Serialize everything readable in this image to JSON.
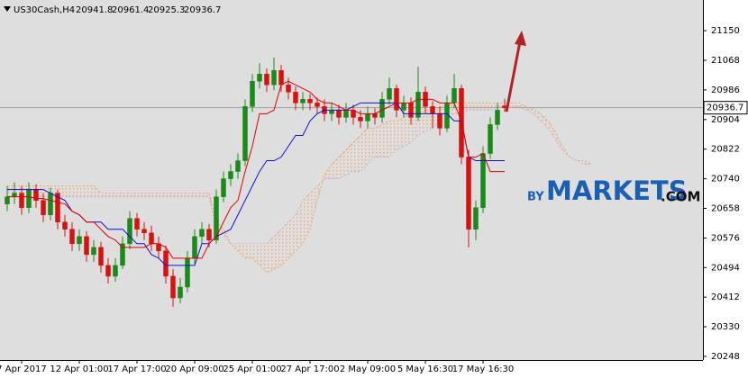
{
  "chart_data": {
    "type": "candlestick",
    "title": "US30Cash,H4",
    "header_ohlc": [
      20941.8,
      20961.4,
      20925.3,
      20936.7
    ],
    "last_price": 20936.7,
    "ylim": [
      20238,
      21235
    ],
    "yticks": [
      21150,
      21068,
      20986,
      20904,
      20822,
      20740,
      20658,
      20576,
      20494,
      20412,
      20330,
      20248
    ],
    "categories": [
      null,
      null,
      "7 Apr 2017",
      null,
      null,
      null,
      null,
      null,
      null,
      null,
      "12 Apr 01:00",
      null,
      null,
      null,
      null,
      null,
      null,
      null,
      "17 Apr 17:00",
      null,
      null,
      null,
      null,
      null,
      null,
      null,
      "20 Apr 09:00",
      null,
      null,
      null,
      null,
      null,
      null,
      null,
      "25 Apr 01:00",
      null,
      null,
      null,
      null,
      null,
      null,
      null,
      "27 Apr 17:00",
      null,
      null,
      null,
      null,
      null,
      null,
      null,
      "2 May 09:00",
      null,
      null,
      null,
      null,
      null,
      null,
      null,
      "5 May 16:30",
      null,
      null,
      null,
      null,
      null,
      null,
      null,
      "17 May 16:30",
      null,
      null,
      null,
      null,
      null,
      null,
      null,
      null,
      null,
      null,
      null,
      null,
      null,
      null,
      null
    ],
    "open": [
      20670,
      20690,
      20700,
      20660,
      20710,
      20680,
      20640,
      20700,
      20620,
      20600,
      20560,
      20580,
      20530,
      20550,
      20500,
      20470,
      20500,
      20560,
      20630,
      20600,
      20590,
      20560,
      20540,
      20470,
      20410,
      20440,
      20520,
      20580,
      20600,
      20570,
      20690,
      20740,
      20760,
      20790,
      20940,
      21010,
      21030,
      21000,
      21040,
      21000,
      20980,
      20950,
      20960,
      20950,
      20940,
      20920,
      20930,
      20910,
      20930,
      20910,
      20900,
      20920,
      20910,
      20960,
      20990,
      20930,
      20950,
      20910,
      20980,
      20940,
      20920,
      20880,
      20950,
      20990,
      20800,
      20600,
      20660,
      20810,
      20890,
      20941.8,
      null,
      null,
      null,
      null,
      null,
      null,
      null,
      null,
      null,
      null,
      null,
      null
    ],
    "high": [
      20720,
      20730,
      20720,
      20730,
      20725,
      20700,
      20715,
      20710,
      20640,
      20620,
      20600,
      20595,
      20570,
      20565,
      20520,
      20520,
      20580,
      20650,
      20645,
      20620,
      20610,
      20580,
      20555,
      20490,
      20465,
      20540,
      20600,
      20620,
      20615,
      20710,
      20760,
      20780,
      20810,
      20960,
      21030,
      21060,
      21045,
      21075,
      21055,
      21020,
      20995,
      20980,
      20975,
      20965,
      20960,
      20950,
      20945,
      20950,
      20945,
      20930,
      20940,
      20935,
      20980,
      21020,
      21000,
      20970,
      20965,
      21050,
      20995,
      20955,
      20940,
      20970,
      21030,
      21000,
      20820,
      20680,
      20830,
      20910,
      20950,
      20961.4,
      null,
      null,
      null,
      null,
      null,
      null,
      null,
      null,
      null,
      null,
      null,
      null
    ],
    "low": [
      20650,
      20670,
      20640,
      20645,
      20660,
      20620,
      20625,
      20600,
      20580,
      20540,
      20540,
      20510,
      20510,
      20480,
      20450,
      20455,
      20490,
      20545,
      20580,
      20570,
      20540,
      20520,
      20450,
      20385,
      20395,
      20425,
      20505,
      20560,
      20550,
      20560,
      20675,
      20720,
      20740,
      20775,
      20925,
      20990,
      20980,
      20985,
      20980,
      20960,
      20930,
      20930,
      20930,
      20920,
      20900,
      20900,
      20890,
      20895,
      20890,
      20880,
      20880,
      20890,
      20895,
      20945,
      20910,
      20910,
      20890,
      20900,
      20920,
      20880,
      20860,
      20870,
      20935,
      20780,
      20550,
      20570,
      20645,
      20795,
      20875,
      20925.3,
      null,
      null,
      null,
      null,
      null,
      null,
      null,
      null,
      null,
      null,
      null,
      null
    ],
    "close": [
      20690,
      20700,
      20660,
      20710,
      20680,
      20640,
      20700,
      20620,
      20600,
      20560,
      20580,
      20530,
      20550,
      20500,
      20470,
      20500,
      20560,
      20630,
      20600,
      20590,
      20560,
      20540,
      20470,
      20410,
      20440,
      20520,
      20580,
      20600,
      20570,
      20690,
      20740,
      20760,
      20790,
      20940,
      21010,
      21030,
      21000,
      21040,
      21000,
      20980,
      20950,
      20960,
      20950,
      20940,
      20920,
      20930,
      20910,
      20930,
      20910,
      20900,
      20920,
      20910,
      20960,
      20990,
      20930,
      20950,
      20910,
      20980,
      20940,
      20920,
      20880,
      20950,
      20990,
      20800,
      20600,
      20660,
      20810,
      20890,
      20930,
      20936.7,
      null,
      null,
      null,
      null,
      null,
      null,
      null,
      null,
      null,
      null,
      null,
      null
    ],
    "tenkan": [
      20690,
      20690,
      20690,
      20690,
      20685,
      20685,
      20680,
      20675,
      20670,
      20650,
      20640,
      20620,
      20620,
      20600,
      20580,
      20570,
      20550,
      20550,
      20550,
      20550,
      20560,
      20560,
      20550,
      20520,
      20520,
      20520,
      20520,
      20520,
      20560,
      20580,
      20620,
      20660,
      20680,
      20760,
      20830,
      20920,
      20920,
      20930,
      21000,
      21010,
      21000,
      20990,
      20980,
      20960,
      20950,
      20950,
      20940,
      20930,
      20930,
      20920,
      20920,
      20920,
      20930,
      20940,
      20950,
      20950,
      20950,
      20960,
      20960,
      20960,
      20950,
      20950,
      20950,
      20900,
      20800,
      20800,
      20810,
      20760,
      20760,
      20760,
      null,
      null,
      null,
      null,
      null,
      null,
      null,
      null,
      null,
      null,
      null,
      null
    ],
    "kijun": [
      20710,
      20710,
      20710,
      20710,
      20710,
      20710,
      20700,
      20690,
      20680,
      20650,
      20640,
      20620,
      20620,
      20620,
      20600,
      20600,
      20600,
      20580,
      20560,
      20560,
      20530,
      20520,
      20500,
      20500,
      20500,
      20500,
      20500,
      20560,
      20560,
      20580,
      20590,
      20600,
      20640,
      20680,
      20720,
      20760,
      20790,
      20790,
      20800,
      20830,
      20860,
      20860,
      20900,
      20920,
      20930,
      20930,
      20930,
      20930,
      20940,
      20950,
      20950,
      20950,
      20950,
      20950,
      20950,
      20920,
      20920,
      20920,
      20920,
      20920,
      20920,
      20920,
      20900,
      20900,
      20800,
      20790,
      20790,
      20790,
      20790,
      20790,
      null,
      null,
      null,
      null,
      null,
      null,
      null,
      null,
      null,
      null,
      null,
      null
    ],
    "span_a": [
      20720,
      20720,
      20720,
      20720,
      20720,
      20720,
      20720,
      20720,
      20720,
      20720,
      20720,
      20720,
      20720,
      20700,
      20700,
      20700,
      20700,
      20700,
      20700,
      20700,
      20700,
      20700,
      20700,
      20700,
      20700,
      20700,
      20700,
      20700,
      20700,
      20620,
      20600,
      20560,
      20540,
      20520,
      20520,
      20500,
      20480,
      20490,
      20500,
      20520,
      20540,
      20560,
      20600,
      20680,
      20750,
      20780,
      20800,
      20820,
      20840,
      20860,
      20880,
      20880,
      20890,
      20900,
      20900,
      20910,
      20920,
      20920,
      20930,
      20930,
      20940,
      20940,
      20950,
      20950,
      20950,
      20950,
      20950,
      20950,
      20950,
      20950,
      20950,
      20950,
      20940,
      20930,
      20920,
      20900,
      20870,
      20830,
      20800,
      20790,
      20790,
      20780
    ],
    "span_b": [
      20690,
      20690,
      20690,
      20690,
      20690,
      20690,
      20690,
      20690,
      20690,
      20690,
      20690,
      20690,
      20690,
      20690,
      20690,
      20690,
      20690,
      20690,
      20690,
      20690,
      20690,
      20690,
      20690,
      20690,
      20690,
      20690,
      20690,
      20690,
      20690,
      20600,
      20580,
      20560,
      20560,
      20560,
      20560,
      20560,
      20560,
      20580,
      20600,
      20620,
      20640,
      20680,
      20700,
      20720,
      20740,
      20740,
      20740,
      20750,
      20760,
      20760,
      20780,
      20800,
      20800,
      20800,
      20820,
      20830,
      20840,
      20860,
      20870,
      20880,
      20900,
      20900,
      20920,
      20920,
      20930,
      20930,
      20930,
      20930,
      20940,
      20940,
      20940,
      20940,
      20930,
      20920,
      20900,
      20880,
      20850,
      20820,
      20800,
      20790,
      20780,
      20780
    ],
    "up_color": "#1a8a1a",
    "down_color": "#d81010",
    "tenkan_color": "#e00000",
    "kijun_color": "#1010d0",
    "span_a_color": "#f0a060",
    "span_b_color": "#d8a8d8",
    "logo": {
      "prefix": "BY",
      "main": "MARKETS",
      "suffix": ".COM"
    }
  }
}
